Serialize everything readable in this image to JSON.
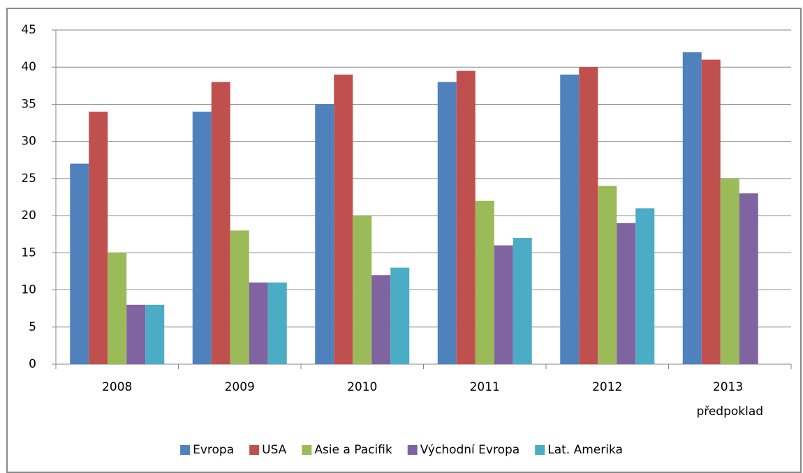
{
  "chart_data": {
    "type": "bar",
    "categories": [
      "2008",
      "2009",
      "2010",
      "2011",
      "2012",
      "2013 předpoklad"
    ],
    "series": [
      {
        "name": "Evropa",
        "color": "#4f81bd",
        "values": [
          27,
          34,
          35,
          38,
          39,
          42
        ]
      },
      {
        "name": "USA",
        "color": "#c0504d",
        "values": [
          34,
          38,
          39,
          39.5,
          40,
          41
        ]
      },
      {
        "name": "Asie a Pacifik",
        "color": "#9bbb59",
        "values": [
          15,
          18,
          20,
          22,
          24,
          25
        ]
      },
      {
        "name": "Východní Evropa",
        "color": "#8064a2",
        "values": [
          8,
          11,
          12,
          16,
          19,
          23
        ]
      },
      {
        "name": "Lat. Amerika",
        "color": "#4bacc6",
        "values": [
          8,
          11,
          13,
          17,
          21,
          null
        ]
      }
    ],
    "ylim": [
      0,
      45
    ],
    "yticks": [
      0,
      5,
      10,
      15,
      20,
      25,
      30,
      35,
      40,
      45
    ],
    "grid": true,
    "legend": "bottom"
  }
}
